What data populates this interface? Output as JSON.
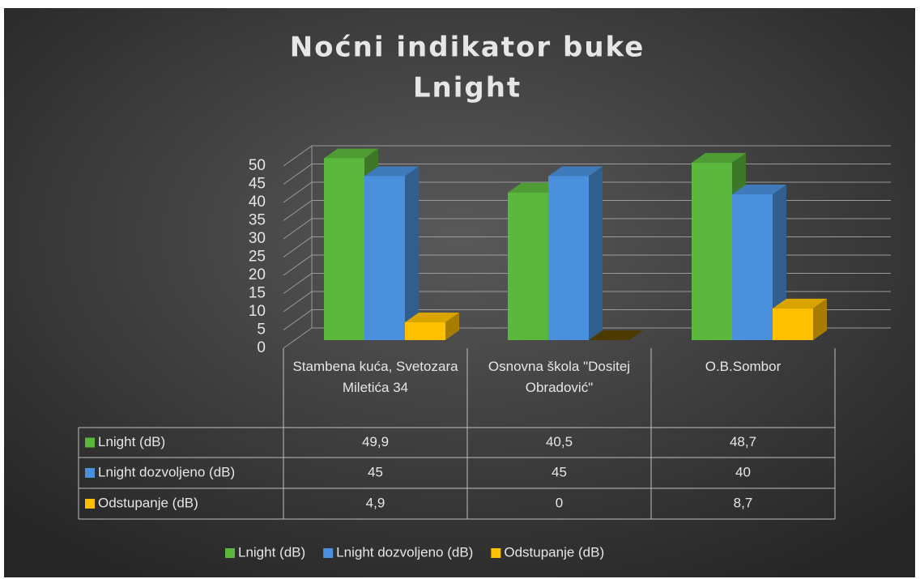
{
  "chart_data": {
    "type": "bar3d",
    "title": "Noćni indikator buke",
    "subtitle": "Lnight",
    "categories": [
      "Stambena kuća, Svetozara Miletića 34",
      "Osnovna škola \"Dositej Obradović\"",
      "O.B.Sombor"
    ],
    "series": [
      {
        "name": "Lnight (dB)",
        "color": "#5cb83c",
        "values": [
          49.9,
          40.5,
          48.7
        ],
        "value_labels": [
          "49,9",
          "40,5",
          "48,7"
        ]
      },
      {
        "name": "Lnight dozvoljeno (dB)",
        "color": "#4a90dc",
        "values": [
          45,
          45,
          40
        ],
        "value_labels": [
          "45",
          "45",
          "40"
        ]
      },
      {
        "name": "Odstupanje (dB)",
        "color": "#ffc000",
        "values": [
          4.9,
          0,
          8.7
        ],
        "value_labels": [
          "4,9",
          "0",
          "8,7"
        ]
      }
    ],
    "ylim": [
      0,
      50
    ],
    "yticks": [
      0,
      5,
      10,
      15,
      20,
      25,
      30,
      35,
      40,
      45,
      50
    ],
    "grid": true,
    "legend": "bottom"
  }
}
